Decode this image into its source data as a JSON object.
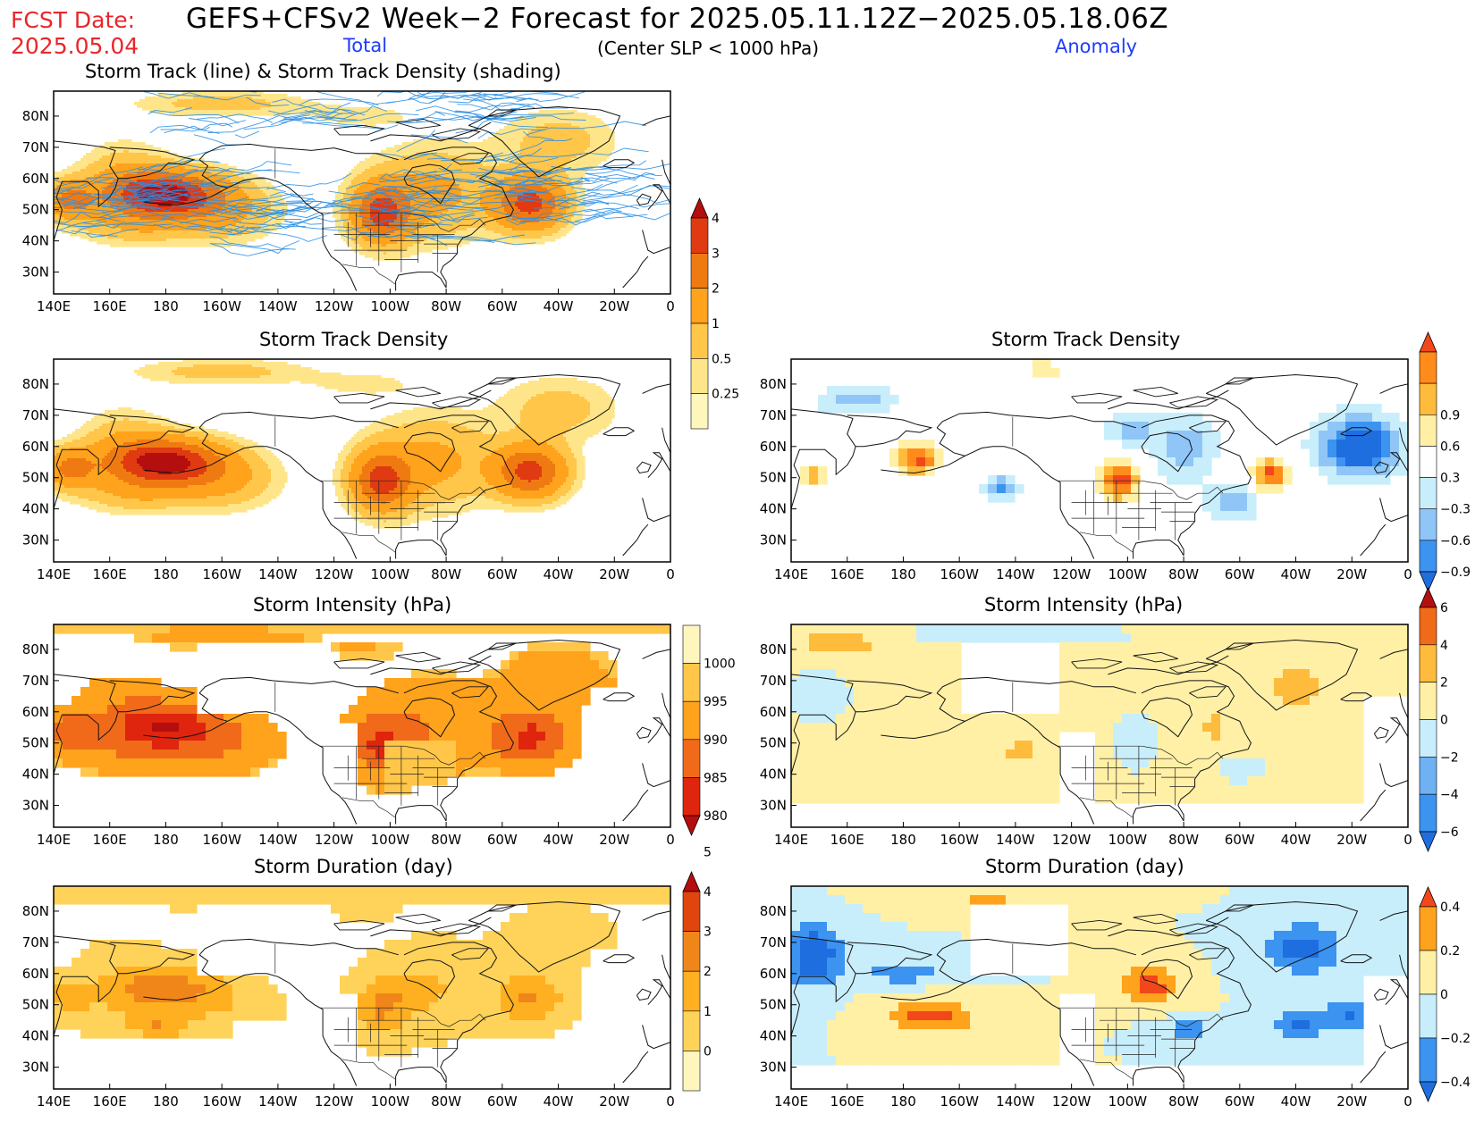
{
  "header": {
    "fcst_label": "FCST Date:",
    "fcst_date": "2025.05.04",
    "title": "GEFS+CFSv2 Week−2 Forecast for 2025.05.11.12Z−2025.05.18.06Z",
    "subtitle": "(Center SLP < 1000 hPa)",
    "total_label": "Total",
    "anomaly_label": "Anomaly"
  },
  "axes": {
    "lon_labels": [
      "140E",
      "160E",
      "180",
      "160W",
      "140W",
      "120W",
      "100W",
      "80W",
      "60W",
      "40W",
      "20W",
      "0"
    ],
    "lat_labels": [
      "80N",
      "70N",
      "60N",
      "50N",
      "40N",
      "30N"
    ]
  },
  "panels": [
    {
      "id": "track-total",
      "title": "Storm Track (line) & Storm Track Density (shading)"
    },
    {
      "id": "density-total",
      "title": "Storm Track Density"
    },
    {
      "id": "density-anom",
      "title": "Storm Track Density"
    },
    {
      "id": "intensity-total",
      "title": "Storm Intensity (hPa)"
    },
    {
      "id": "intensity-anom",
      "title": "Storm Intensity (hPa)"
    },
    {
      "id": "duration-total",
      "title": "Storm Duration (day)"
    },
    {
      "id": "duration-anom",
      "title": "Storm Duration (day)"
    }
  ],
  "colorbars": {
    "density_total": {
      "labels": [
        "0.25",
        "0.5",
        "1",
        "2",
        "3",
        "4"
      ],
      "colors": [
        "#fff6bd",
        "#ffe58a",
        "#ffc64a",
        "#ffa21c",
        "#f07a12",
        "#e03a12",
        "#b40e0e"
      ]
    },
    "density_anom": {
      "labels": [
        "−0.9",
        "−0.6",
        "−0.3",
        "0.3",
        "0.6",
        "0.9"
      ],
      "colors": [
        "#1e6ee0",
        "#3c93f0",
        "#8fc6f7",
        "#c9eefb",
        "#ffffff",
        "#fff0a6",
        "#ffbb3b",
        "#ff8b1a",
        "#f2471a"
      ]
    },
    "intensity_total": {
      "labels": [
        "980",
        "985",
        "990",
        "995",
        "1000"
      ],
      "colors": [
        "#b40e0e",
        "#e0250e",
        "#f06a1a",
        "#ffa21c",
        "#ffc64a",
        "#fff6bd"
      ]
    },
    "intensity_anom": {
      "labels": [
        "−6",
        "−4",
        "−2",
        "0",
        "2",
        "4",
        "6"
      ],
      "colors": [
        "#1e6ee0",
        "#3c93f0",
        "#6fb2f4",
        "#c9eefb",
        "#fff0a6",
        "#ffbb3b",
        "#f06a1a",
        "#b40e0e"
      ]
    },
    "duration_total": {
      "labels": [
        "0",
        "1",
        "2",
        "3",
        "4",
        "5"
      ],
      "colors": [
        "#fff6bd",
        "#ffd35a",
        "#ffb020",
        "#f0861a",
        "#e0450e",
        "#b40e0e"
      ]
    },
    "duration_anom": {
      "labels": [
        "−0.4",
        "−0.2",
        "0",
        "0.2",
        "0.4"
      ],
      "colors": [
        "#1e6ee0",
        "#3c93f0",
        "#c9eefb",
        "#fff0a6",
        "#ffa21c",
        "#f2471a"
      ]
    }
  }
}
